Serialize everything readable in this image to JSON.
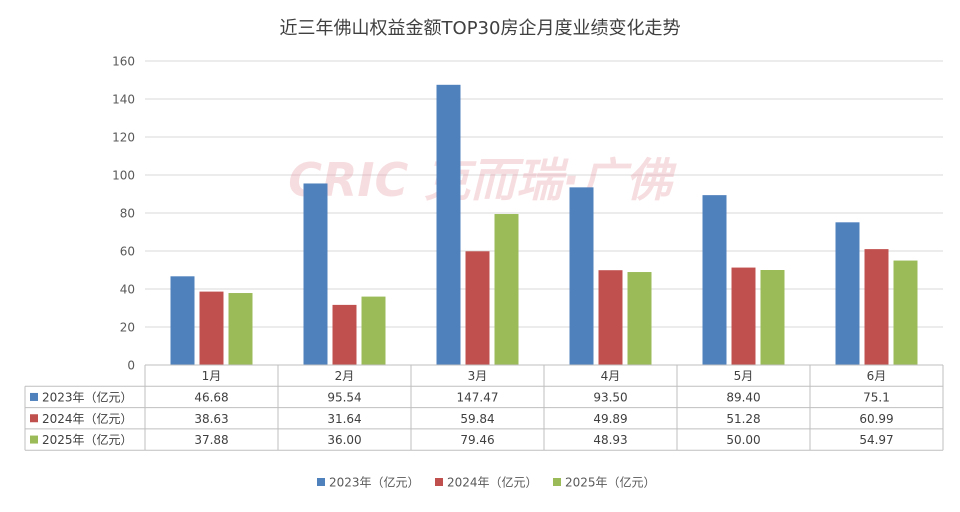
{
  "chart_data": {
    "type": "bar",
    "title": "近三年佛山权益金额TOP30房企月度业绩变化走势",
    "categories": [
      "1月",
      "2月",
      "3月",
      "4月",
      "5月",
      "6月"
    ],
    "series": [
      {
        "name": "2023年（亿元）",
        "color": "#4F81BD",
        "values": [
          46.68,
          95.54,
          147.47,
          93.5,
          89.4,
          75.1
        ],
        "labels": [
          "46.68",
          "95.54",
          "147.47",
          "93.50",
          "89.40",
          "75.1"
        ]
      },
      {
        "name": "2024年（亿元）",
        "color": "#C0504D",
        "values": [
          38.63,
          31.64,
          59.84,
          49.89,
          51.28,
          60.99
        ],
        "labels": [
          "38.63",
          "31.64",
          "59.84",
          "49.89",
          "51.28",
          "60.99"
        ]
      },
      {
        "name": "2025年（亿元）",
        "color": "#9BBB59",
        "values": [
          37.88,
          36.0,
          79.46,
          48.93,
          50.0,
          54.97
        ],
        "labels": [
          "37.88",
          "36.00",
          "79.46",
          "48.93",
          "50.00",
          "54.97"
        ]
      }
    ],
    "ylim": [
      0,
      160
    ],
    "yticks": [
      0,
      20,
      40,
      60,
      80,
      100,
      120,
      140,
      160
    ],
    "grid": true,
    "legend": "bottom",
    "data_table": true
  },
  "watermark": {
    "text": "CRIC 克而瑞·广佛"
  }
}
